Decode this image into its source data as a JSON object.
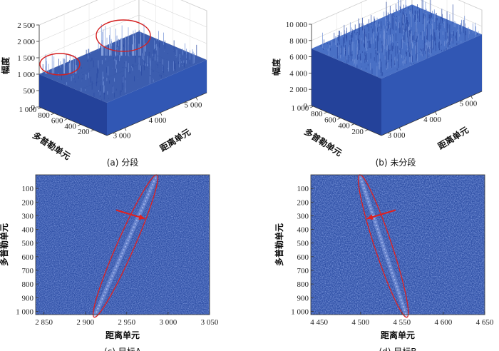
{
  "chart_data": [
    {
      "type": "surface3d",
      "caption": "(a) 分段",
      "zlabel": "幅度",
      "xlabel": "距离单元",
      "ylabel": "多普勒单元",
      "z_ticks": [
        "0",
        "500",
        "1 000",
        "1 500",
        "2 000",
        "2 500"
      ],
      "zlim": [
        0,
        2500
      ],
      "x_ticks": [
        "3 000",
        "4 000",
        "5 000"
      ],
      "xlim": [
        2500,
        5300
      ],
      "y_ticks": [
        "1 000",
        "800",
        "600",
        "400",
        "200"
      ],
      "ylim": [
        0,
        1024
      ],
      "background_level": 1000,
      "highlights": [
        {
          "marker": "red-ellipse",
          "peak_amplitude": 2300
        },
        {
          "marker": "red-ellipse",
          "peak_amplitude": 1400
        }
      ],
      "surface_color": "#2b4fa8"
    },
    {
      "type": "surface3d",
      "caption": "(b) 未分段",
      "zlabel": "幅度",
      "xlabel": "距离单元",
      "ylabel": "多普勒单元",
      "z_ticks": [
        "0",
        "2 000",
        "4 000",
        "6 000",
        "8 000",
        "10 000"
      ],
      "zlim": [
        0,
        10000
      ],
      "x_ticks": [
        "3 000",
        "4 000",
        "5 000"
      ],
      "xlim": [
        2500,
        5300
      ],
      "y_ticks": [
        "1 000",
        "800",
        "600",
        "400",
        "200"
      ],
      "ylim": [
        0,
        1024
      ],
      "background_level": 7000,
      "peak_amplitude": 10500,
      "surface_color": "#3a64c0"
    },
    {
      "type": "heatmap",
      "caption": "(c) 目标A",
      "xlabel": "距离单元",
      "ylabel": "多普勒单元",
      "x_ticks": [
        "2 850",
        "2 900",
        "2 950",
        "3 000",
        "3 050"
      ],
      "xlim": [
        2840,
        3050
      ],
      "y_ticks": [
        "100",
        "200",
        "300",
        "400",
        "500",
        "600",
        "700",
        "800",
        "900",
        "1 000"
      ],
      "ylim": [
        0,
        1024
      ],
      "background_color": "#2f50a6",
      "target_trace": {
        "x_start": 2985,
        "y_start": 20,
        "x_end": 2912,
        "y_end": 1024
      },
      "annotation": "red-ellipse-and-arrow"
    },
    {
      "type": "heatmap",
      "caption": "(d) 目标B",
      "xlabel": "距离单元",
      "ylabel": "多普勒单元",
      "x_ticks": [
        "4 450",
        "4 500",
        "4 550",
        "4 600",
        "4 650"
      ],
      "xlim": [
        4440,
        4650
      ],
      "y_ticks": [
        "100",
        "200",
        "300",
        "400",
        "500",
        "600",
        "700",
        "800",
        "900",
        "1 000"
      ],
      "ylim": [
        0,
        1024
      ],
      "background_color": "#2f50a6",
      "target_trace": {
        "x_start": 4500,
        "y_start": 20,
        "x_end": 4555,
        "y_end": 1024
      },
      "annotation": "red-ellipse-and-arrow"
    }
  ]
}
